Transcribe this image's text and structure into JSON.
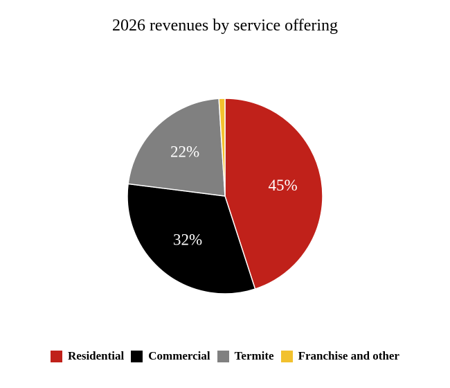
{
  "chart_data": {
    "type": "pie",
    "title": "2026 revenues by service offering",
    "slices": [
      {
        "name": "Residential",
        "value": 45,
        "label": "45%",
        "color": "#C0211A"
      },
      {
        "name": "Commercial",
        "value": 32,
        "label": "32%",
        "color": "#000000"
      },
      {
        "name": "Termite",
        "value": 22,
        "label": "22%",
        "color": "#808080"
      },
      {
        "name": "Franchise and other",
        "value": 1,
        "label": "",
        "color": "#F2C12E"
      }
    ],
    "start_angle_deg": 0,
    "direction": "clockwise",
    "legend_position": "bottom"
  }
}
